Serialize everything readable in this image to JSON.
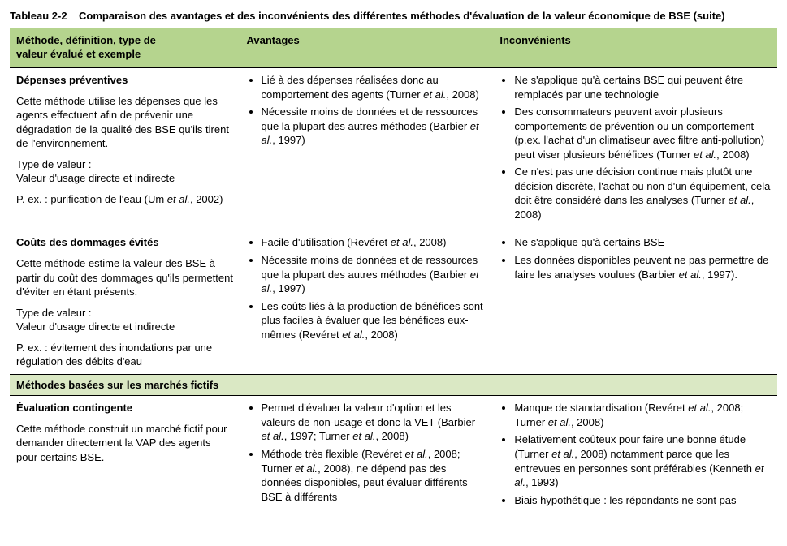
{
  "table": {
    "caption_prefix": "Tableau 2-2",
    "caption_text": "Comparaison des avantages et des inconvénients des différentes méthodes d'évaluation de la valeur économique de BSE (suite)",
    "headers": {
      "col1_line1": "Méthode, définition, type de",
      "col1_line2": "valeur évalué et exemple",
      "col2": "Avantages",
      "col3": "Inconvénients"
    },
    "rows": [
      {
        "method": {
          "title": "Dépenses préventives",
          "desc": "Cette méthode utilise les dépenses que les agents effectuent afin de prévenir une dégradation de la qualité des BSE qu'ils tirent de l'environnement.",
          "type_label": "Type de valeur :",
          "type_value": "Valeur d'usage directe et indirecte",
          "example_prefix": "P. ex. : purification de l'eau (Um ",
          "example_italic": "et al.",
          "example_suffix": ", 2002)"
        },
        "adv": [
          {
            "pre": "Lié à des dépenses réalisées donc au comportement des agents (Turner ",
            "it": "et al.",
            "post": ", 2008)"
          },
          {
            "pre": "Nécessite moins de données et de ressources que la plupart des autres méthodes (Barbier ",
            "it": "et al.",
            "post": ", 1997)"
          }
        ],
        "inc": [
          {
            "pre": "Ne s'applique qu'à certains BSE qui peuvent être remplacés par une technologie",
            "it": "",
            "post": ""
          },
          {
            "pre": "Des consommateurs peuvent avoir plusieurs comportements de prévention ou un comportement (p.ex. l'achat d'un climatiseur avec filtre anti-pollution) peut viser plusieurs bénéfices (Turner ",
            "it": "et al.",
            "post": ", 2008)"
          },
          {
            "pre": "Ce n'est pas une décision continue mais plutôt une décision discrète, l'achat ou non d'un équipement, cela doit être considéré dans les analyses (Turner ",
            "it": "et al.",
            "post": ", 2008)"
          }
        ]
      },
      {
        "method": {
          "title": "Coûts des dommages évités",
          "desc": "Cette méthode estime la valeur des BSE à partir du coût des dommages qu'ils permettent d'éviter en étant présents.",
          "type_label": "Type de valeur :",
          "type_value": "Valeur d'usage directe et indirecte",
          "example_prefix": "P. ex. : évitement des inondations par une régulation des débits d'eau",
          "example_italic": "",
          "example_suffix": ""
        },
        "adv": [
          {
            "pre": "Facile d'utilisation (Revéret ",
            "it": "et al.",
            "post": ", 2008)"
          },
          {
            "pre": "Nécessite moins de données et de ressources que la plupart des autres méthodes (Barbier ",
            "it": "et al.",
            "post": ", 1997)"
          },
          {
            "pre": "Les coûts liés à la production de bénéfices sont plus faciles à évaluer que les bénéfices eux-mêmes (Revéret ",
            "it": "et al.",
            "post": ", 2008)"
          }
        ],
        "inc": [
          {
            "pre": "Ne s'applique qu'à certains BSE",
            "it": "",
            "post": ""
          },
          {
            "pre": "Les données disponibles peuvent ne pas permettre de faire les analyses voulues (Barbier ",
            "it": "et al.",
            "post": ", 1997)."
          }
        ]
      }
    ],
    "section": "Méthodes basées sur les marchés fictifs",
    "rows2": [
      {
        "method": {
          "title": "Évaluation contingente",
          "desc": "Cette méthode construit un marché fictif pour demander directement la VAP des agents pour certains BSE.",
          "type_label": "",
          "type_value": "",
          "example_prefix": "",
          "example_italic": "",
          "example_suffix": ""
        },
        "adv": [
          {
            "pre": "Permet d'évaluer la valeur d'option et les valeurs de non-usage et donc la VET (Barbier ",
            "it": "et al.",
            "post": ", 1997; Turner ",
            "it2": "et al.",
            "post2": ", 2008)"
          },
          {
            "pre": "Méthode très flexible (Revéret ",
            "it": "et al.",
            "post": ", 2008; Turner ",
            "it2": "et al.",
            "post2": ", 2008), ne dépend pas des données disponibles, peut évaluer différents BSE à différents"
          }
        ],
        "inc": [
          {
            "pre": "Manque de standardisation (Revéret ",
            "it": "et al.",
            "post": ", 2008; Turner ",
            "it2": "et al.",
            "post2": ", 2008)"
          },
          {
            "pre": "Relativement coûteux pour faire une bonne étude (Turner ",
            "it": "et al.",
            "post": ", 2008) notamment parce que les entrevues en personnes sont préférables (Kenneth ",
            "it2": "et al.",
            "post2": ", 1993)"
          },
          {
            "pre": "Biais hypothétique : les répondants ne sont pas",
            "it": "",
            "post": ""
          }
        ]
      }
    ]
  }
}
